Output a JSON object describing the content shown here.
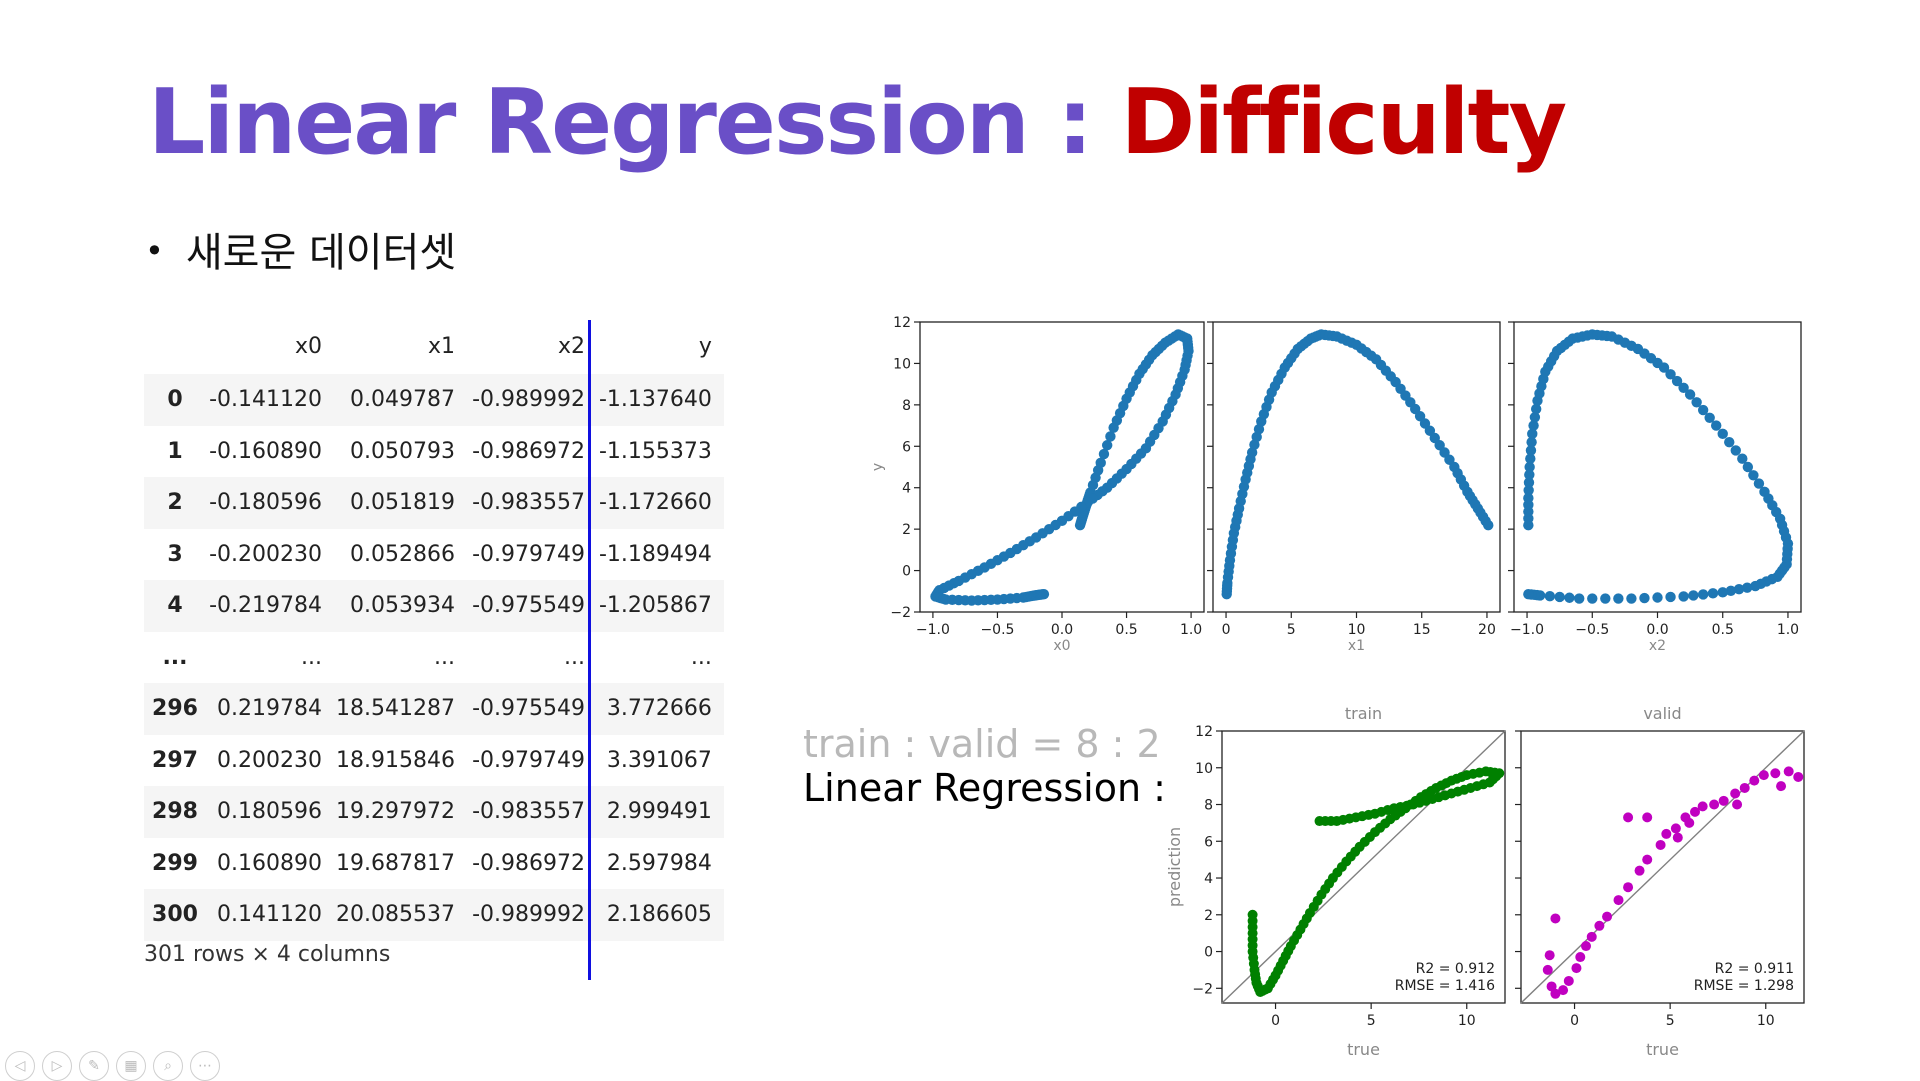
{
  "slide": {
    "title_part1": "Linear Regression : ",
    "title_part2": "Difficulty",
    "bullet": "새로운 데이터셋",
    "split_label": "train : valid = 8 : 2",
    "lr_label": "Linear Regression :"
  },
  "table": {
    "columns": [
      "x0",
      "x1",
      "x2",
      "y"
    ],
    "rows": [
      {
        "index": "0",
        "x0": "-0.141120",
        "x1": "0.049787",
        "x2": "-0.989992",
        "y": "-1.137640"
      },
      {
        "index": "1",
        "x0": "-0.160890",
        "x1": "0.050793",
        "x2": "-0.986972",
        "y": "-1.155373"
      },
      {
        "index": "2",
        "x0": "-0.180596",
        "x1": "0.051819",
        "x2": "-0.983557",
        "y": "-1.172660"
      },
      {
        "index": "3",
        "x0": "-0.200230",
        "x1": "0.052866",
        "x2": "-0.979749",
        "y": "-1.189494"
      },
      {
        "index": "4",
        "x0": "-0.219784",
        "x1": "0.053934",
        "x2": "-0.975549",
        "y": "-1.205867"
      },
      {
        "index": "...",
        "x0": "...",
        "x1": "...",
        "x2": "...",
        "y": "..."
      },
      {
        "index": "296",
        "x0": "0.219784",
        "x1": "18.541287",
        "x2": "-0.975549",
        "y": "3.772666"
      },
      {
        "index": "297",
        "x0": "0.200230",
        "x1": "18.915846",
        "x2": "-0.979749",
        "y": "3.391067"
      },
      {
        "index": "298",
        "x0": "0.180596",
        "x1": "19.297972",
        "x2": "-0.983557",
        "y": "2.999491"
      },
      {
        "index": "299",
        "x0": "0.160890",
        "x1": "19.687817",
        "x2": "-0.986972",
        "y": "2.597984"
      },
      {
        "index": "300",
        "x0": "0.141120",
        "x1": "20.085537",
        "x2": "-0.989992",
        "y": "2.186605"
      }
    ],
    "caption": "301 rows × 4 columns"
  },
  "scatter_colors": {
    "top": "#1f77b4",
    "train": "#008000",
    "valid": "#c000c0",
    "diag": "#808080",
    "separator": "#1010e0"
  },
  "chart_data": [
    {
      "type": "scatter",
      "title": "",
      "xlabel": "x0",
      "ylabel": "y",
      "xlim": [
        -1.1,
        1.1
      ],
      "ylim": [
        -2,
        12
      ],
      "xticks": [
        "−1.0",
        "−0.5",
        "0.0",
        "0.5",
        "1.0"
      ],
      "yticks": [
        "−2",
        "0",
        "2",
        "4",
        "6",
        "8",
        "10",
        "12"
      ],
      "series": [
        {
          "points": [
            [
              0.14,
              2.19
            ],
            [
              0.16,
              2.6
            ],
            [
              0.18,
              3.0
            ],
            [
              0.2,
              3.39
            ],
            [
              0.22,
              3.77
            ],
            [
              0.3,
              5.2
            ],
            [
              0.4,
              6.9
            ],
            [
              0.5,
              8.3
            ],
            [
              0.6,
              9.5
            ],
            [
              0.7,
              10.4
            ],
            [
              0.8,
              11.0
            ],
            [
              0.9,
              11.4
            ],
            [
              0.97,
              11.2
            ],
            [
              0.98,
              10.6
            ],
            [
              0.95,
              9.7
            ],
            [
              0.88,
              8.5
            ],
            [
              0.78,
              7.2
            ],
            [
              0.65,
              5.9
            ],
            [
              0.5,
              4.9
            ],
            [
              0.35,
              4.0
            ],
            [
              0.2,
              3.3
            ],
            [
              0.0,
              2.4
            ],
            [
              -0.2,
              1.6
            ],
            [
              -0.4,
              0.85
            ],
            [
              -0.6,
              0.15
            ],
            [
              -0.8,
              -0.5
            ],
            [
              -0.95,
              -0.95
            ],
            [
              -0.98,
              -1.25
            ],
            [
              -0.9,
              -1.4
            ],
            [
              -0.7,
              -1.45
            ],
            [
              -0.5,
              -1.4
            ],
            [
              -0.3,
              -1.3
            ],
            [
              -0.22,
              -1.21
            ],
            [
              -0.18,
              -1.17
            ],
            [
              -0.14,
              -1.14
            ]
          ]
        }
      ]
    },
    {
      "type": "scatter",
      "title": "",
      "xlabel": "x1",
      "ylabel": "",
      "xlim": [
        -1,
        21
      ],
      "ylim": [
        -2,
        12
      ],
      "xticks": [
        "0",
        "5",
        "10",
        "15",
        "20"
      ],
      "series": [
        {
          "points": [
            [
              0.05,
              -1.14
            ],
            [
              0.1,
              -0.6
            ],
            [
              0.3,
              0.5
            ],
            [
              0.6,
              1.8
            ],
            [
              1.0,
              3.0
            ],
            [
              1.5,
              4.4
            ],
            [
              2.0,
              5.7
            ],
            [
              2.7,
              7.2
            ],
            [
              3.5,
              8.6
            ],
            [
              4.5,
              9.8
            ],
            [
              5.5,
              10.7
            ],
            [
              6.5,
              11.2
            ],
            [
              7.3,
              11.4
            ],
            [
              8.5,
              11.3
            ],
            [
              10.0,
              10.9
            ],
            [
              11.5,
              10.2
            ],
            [
              13.0,
              9.1
            ],
            [
              14.5,
              7.8
            ],
            [
              16.0,
              6.4
            ],
            [
              17.5,
              5.0
            ],
            [
              18.5,
              3.8
            ],
            [
              19.3,
              3.0
            ],
            [
              20.1,
              2.19
            ]
          ]
        }
      ]
    },
    {
      "type": "scatter",
      "title": "",
      "xlabel": "x2",
      "ylabel": "",
      "xlim": [
        -1.1,
        1.1
      ],
      "ylim": [
        -2,
        12
      ],
      "xticks": [
        "−1.0",
        "−0.5",
        "0.0",
        "0.5",
        "1.0"
      ],
      "series": [
        {
          "points": [
            [
              -0.99,
              2.19
            ],
            [
              -0.99,
              3.5
            ],
            [
              -0.98,
              5.0
            ],
            [
              -0.96,
              6.6
            ],
            [
              -0.92,
              8.2
            ],
            [
              -0.86,
              9.6
            ],
            [
              -0.77,
              10.6
            ],
            [
              -0.65,
              11.2
            ],
            [
              -0.5,
              11.4
            ],
            [
              -0.35,
              11.3
            ],
            [
              -0.15,
              10.7
            ],
            [
              0.05,
              9.8
            ],
            [
              0.25,
              8.5
            ],
            [
              0.45,
              7.0
            ],
            [
              0.65,
              5.4
            ],
            [
              0.82,
              3.8
            ],
            [
              0.94,
              2.5
            ],
            [
              1.0,
              1.3
            ],
            [
              0.99,
              0.3
            ],
            [
              0.92,
              -0.3
            ],
            [
              0.75,
              -0.75
            ],
            [
              0.5,
              -1.05
            ],
            [
              0.2,
              -1.25
            ],
            [
              -0.2,
              -1.35
            ],
            [
              -0.6,
              -1.35
            ],
            [
              -0.9,
              -1.2
            ],
            [
              -0.99,
              -1.14
            ]
          ]
        }
      ]
    },
    {
      "type": "scatter",
      "title": "train",
      "xlabel": "true",
      "ylabel": "prediction",
      "xlim": [
        -2.8,
        12
      ],
      "ylim": [
        -2.8,
        12
      ],
      "xticks": [
        "0",
        "5",
        "10"
      ],
      "yticks": [
        "−2",
        "0",
        "2",
        "4",
        "6",
        "8",
        "10",
        "12"
      ],
      "annotation": [
        "R2 = 0.912",
        "RMSE = 1.416"
      ],
      "series": [
        {
          "points": [
            [
              -1.2,
              2.0
            ],
            [
              -1.2,
              1.0
            ],
            [
              -1.2,
              0.0
            ],
            [
              -1.1,
              -1.0
            ],
            [
              -1.0,
              -1.7
            ],
            [
              -0.8,
              -2.2
            ],
            [
              -0.4,
              -2.0
            ],
            [
              0.0,
              -1.3
            ],
            [
              0.4,
              -0.5
            ],
            [
              0.8,
              0.3
            ],
            [
              1.3,
              1.2
            ],
            [
              1.8,
              2.1
            ],
            [
              2.4,
              3.1
            ],
            [
              3.0,
              4.0
            ],
            [
              3.7,
              4.9
            ],
            [
              4.4,
              5.7
            ],
            [
              5.2,
              6.5
            ],
            [
              6.0,
              7.2
            ],
            [
              6.8,
              7.8
            ],
            [
              7.6,
              8.4
            ],
            [
              8.4,
              8.9
            ],
            [
              9.2,
              9.3
            ],
            [
              10.0,
              9.6
            ],
            [
              11.0,
              9.8
            ],
            [
              11.7,
              9.7
            ],
            [
              11.2,
              9.2
            ],
            [
              10.2,
              8.9
            ],
            [
              9.2,
              8.6
            ],
            [
              8.2,
              8.3
            ],
            [
              7.2,
              8.0
            ],
            [
              6.2,
              7.8
            ],
            [
              5.2,
              7.5
            ],
            [
              4.2,
              7.3
            ],
            [
              3.2,
              7.1
            ],
            [
              2.3,
              7.1
            ]
          ]
        }
      ]
    },
    {
      "type": "scatter",
      "title": "valid",
      "xlabel": "true",
      "ylabel": "",
      "xlim": [
        -2.8,
        12
      ],
      "ylim": [
        -2.8,
        12
      ],
      "xticks": [
        "0",
        "5",
        "10"
      ],
      "annotation": [
        "R2 = 0.911",
        "RMSE = 1.298"
      ],
      "series": [
        {
          "points": [
            [
              -1.3,
              -0.2
            ],
            [
              -1.4,
              -1.0
            ],
            [
              -1.2,
              -1.9
            ],
            [
              -1.0,
              -2.3
            ],
            [
              -0.6,
              -2.1
            ],
            [
              -0.3,
              -1.6
            ],
            [
              0.1,
              -0.9
            ],
            [
              0.3,
              -0.3
            ],
            [
              0.6,
              0.3
            ],
            [
              0.9,
              0.8
            ],
            [
              1.3,
              1.4
            ],
            [
              1.7,
              1.9
            ],
            [
              2.3,
              2.8
            ],
            [
              2.8,
              3.5
            ],
            [
              3.4,
              4.4
            ],
            [
              3.8,
              5.0
            ],
            [
              -1.0,
              1.8
            ],
            [
              4.5,
              5.8
            ],
            [
              4.8,
              6.4
            ],
            [
              5.3,
              6.7
            ],
            [
              5.8,
              7.3
            ],
            [
              6.3,
              7.6
            ],
            [
              6.7,
              7.9
            ],
            [
              2.8,
              7.3
            ],
            [
              3.8,
              7.3
            ],
            [
              7.8,
              8.2
            ],
            [
              8.4,
              8.6
            ],
            [
              8.9,
              8.9
            ],
            [
              9.4,
              9.3
            ],
            [
              9.9,
              9.6
            ],
            [
              10.5,
              9.7
            ],
            [
              11.2,
              9.8
            ],
            [
              11.7,
              9.5
            ],
            [
              10.8,
              9.0
            ],
            [
              8.5,
              8.0
            ],
            [
              6.0,
              7.0
            ],
            [
              5.4,
              6.2
            ],
            [
              7.3,
              8.0
            ]
          ]
        }
      ]
    }
  ]
}
